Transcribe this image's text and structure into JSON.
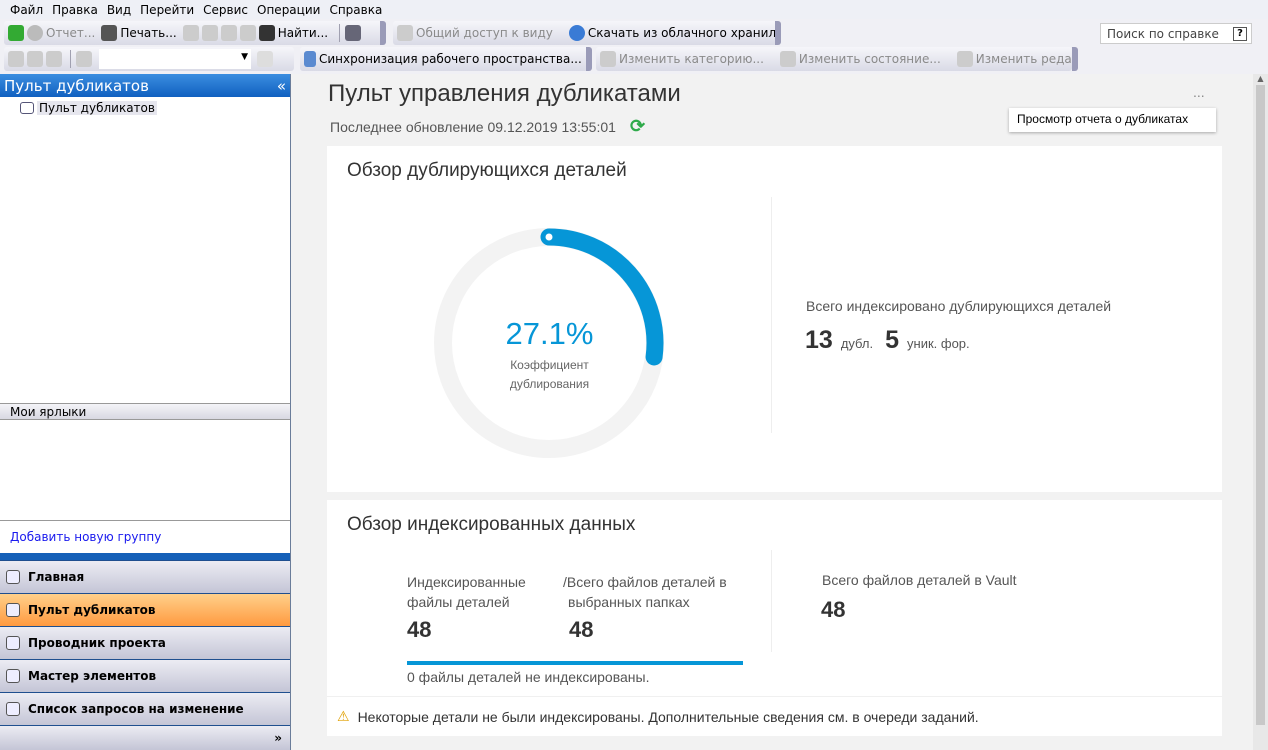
{
  "menu": [
    "Файл",
    "Правка",
    "Вид",
    "Перейти",
    "Сервис",
    "Операции",
    "Справка"
  ],
  "toolbar1": {
    "report": "Отчет...",
    "print": "Печать...",
    "find": "Найти...",
    "share_view": "Общий доступ к виду",
    "download_cloud": "Скачать из облачного хранилища",
    "help_search_placeholder": "Поиск по справке",
    "help_button": "?"
  },
  "toolbar2": {
    "sync": "Синхронизация рабочего пространства...",
    "change_category": "Изменить категорию...",
    "change_state": "Изменить состояние...",
    "change_revision": "Изменить редакцию..."
  },
  "left": {
    "title": "Пульт дубликатов",
    "tree_item": "Пульт дубликатов",
    "shortcuts_title": "Мои ярлыки",
    "add_group": "Добавить новую группу",
    "nav": [
      {
        "label": "Главная",
        "icon": "home-icon"
      },
      {
        "label": "Пульт дубликатов",
        "icon": "chart-icon",
        "active": true
      },
      {
        "label": "Проводник проекта",
        "icon": "project-icon"
      },
      {
        "label": "Мастер элементов",
        "icon": "items-icon"
      },
      {
        "label": "Список запросов на изменение",
        "icon": "list-icon"
      }
    ]
  },
  "main": {
    "title": "Пульт управления дубликатами",
    "last_update": "Последнее обновление 09.12.2019 13:55:01",
    "more": "...",
    "tooltip": "Просмотр отчета о дубликатах",
    "dup": {
      "title": "Обзор дублирующихся деталей",
      "percent": "27.1%",
      "ratio": 0.271,
      "ratio_label1": "Коэффициент",
      "ratio_label2": "дублирования",
      "total_label": "Всего индексировано дублирующихся деталей",
      "dups": "13",
      "dups_unit": "дубл.",
      "unique": "5",
      "unique_unit": "уник. фор."
    },
    "idx": {
      "title": "Обзор индексированных данных",
      "indexed_label1": "Индексированные",
      "indexed_label2": "файлы деталей",
      "indexed": "48",
      "total_label1": "/Всего файлов деталей в",
      "total_label2": "выбранных папках",
      "total": "48",
      "progress": 1.0,
      "not_indexed": "0  файлы деталей не индексированы.",
      "vault_label": "Всего файлов деталей в Vault",
      "vault": "48",
      "warning": "Некоторые детали не были индексированы. Дополнительные сведения см. в очереди заданий."
    }
  },
  "colors": {
    "accent": "#0696d7",
    "refresh": "#2eaa4a",
    "active_nav": "#ffb060"
  }
}
